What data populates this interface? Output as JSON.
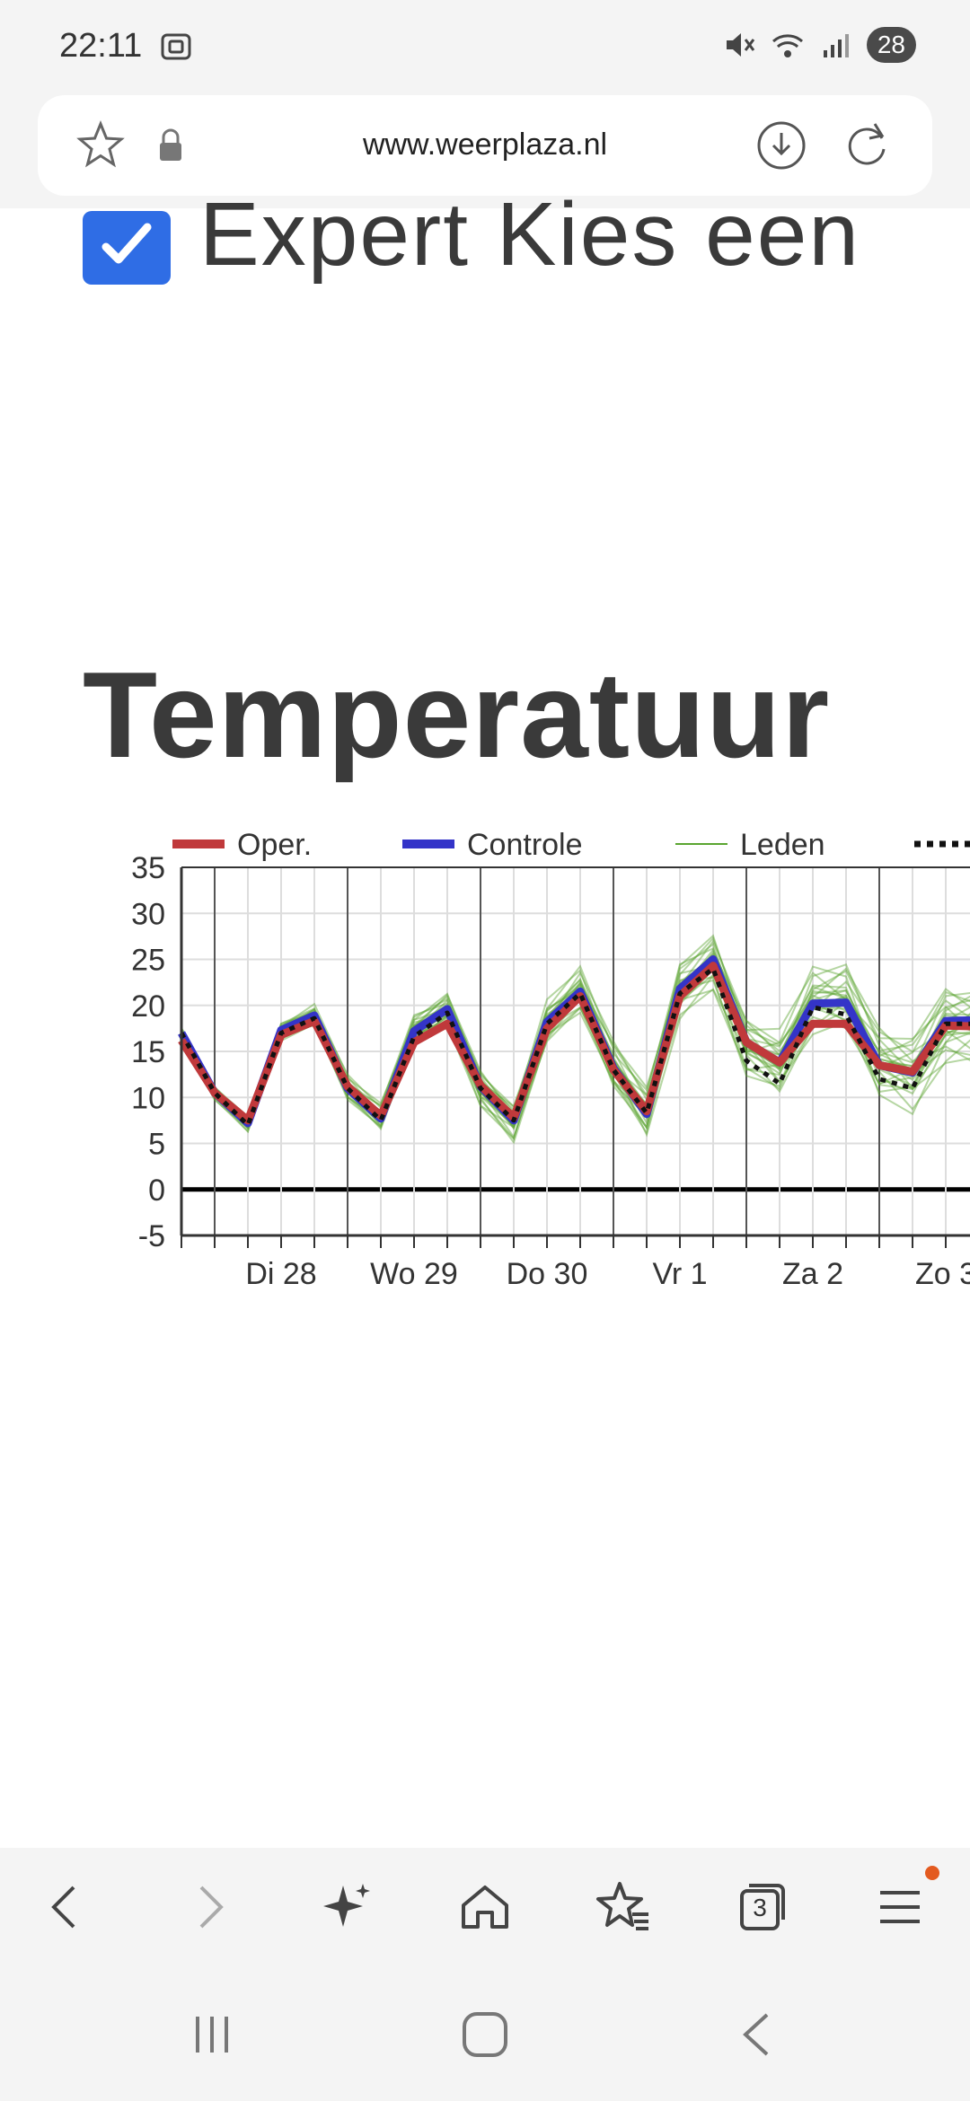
{
  "status": {
    "time": "22:11",
    "battery": "28"
  },
  "browser": {
    "url": "www.weerplaza.nl",
    "tab_count": "3"
  },
  "page": {
    "expert_label": "Expert Kies een",
    "title": "Temperatuur"
  },
  "chart_data": {
    "type": "line",
    "legend": [
      "Oper.",
      "Controle",
      "Leden"
    ],
    "ylim": [
      -5,
      35
    ],
    "yticks": [
      35,
      30,
      25,
      20,
      15,
      10,
      5,
      0,
      -5
    ],
    "xtick_labels": [
      "Di 28",
      "Wo 29",
      "Do 30",
      "Vr 1",
      "Za 2",
      "Zo 3"
    ],
    "x": [
      0,
      1,
      2,
      3,
      4,
      5,
      6,
      7,
      8,
      9,
      10,
      11,
      12,
      13,
      14,
      15,
      16,
      17,
      18,
      19,
      20,
      21,
      22,
      23,
      24
    ],
    "series": [
      {
        "name": "Oper.",
        "color": "#c0393b",
        "values": [
          16.2,
          10.5,
          7.5,
          16.8,
          18.3,
          11.2,
          8.0,
          16.0,
          18.0,
          11.3,
          7.8,
          17.5,
          21.0,
          13.0,
          8.5,
          21.0,
          24.3,
          16.0,
          13.8,
          18.0,
          18.0,
          13.5,
          12.8,
          17.8,
          17.7
        ]
      },
      {
        "name": "Controle",
        "color": "#3434c8",
        "values": [
          17.0,
          10.5,
          7.2,
          17.3,
          18.9,
          11.0,
          7.7,
          17.2,
          19.6,
          11.2,
          7.5,
          18.2,
          21.5,
          13.2,
          8.2,
          21.8,
          25.0,
          16.0,
          13.8,
          20.2,
          20.3,
          13.5,
          12.7,
          18.3,
          18.4
        ]
      },
      {
        "name": "",
        "color": "#111111",
        "values": [
          17.0,
          10.5,
          7.0,
          17.0,
          18.6,
          11.0,
          7.5,
          16.6,
          19.2,
          11.0,
          7.5,
          18.0,
          21.3,
          13.0,
          8.3,
          21.3,
          24.0,
          14.0,
          11.5,
          19.8,
          19.0,
          12.0,
          11.0,
          18.0,
          18.0
        ]
      }
    ],
    "members_color": "#5aa530"
  },
  "icons": {
    "star": "star-outline-icon",
    "lock": "lock-icon",
    "download": "download-icon",
    "reload": "reload-icon"
  }
}
